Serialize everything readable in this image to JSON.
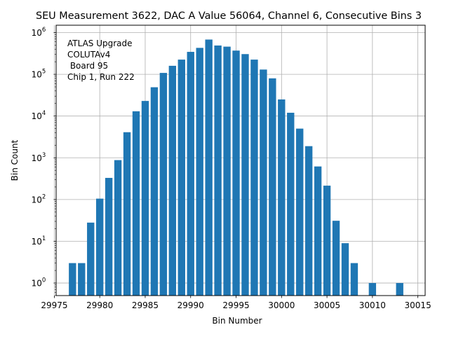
{
  "chart_data": {
    "type": "bar",
    "title": "SEU Measurement 3622, DAC A Value 56064, Channel 6, Consecutive Bins 3",
    "xlabel": "Bin Number",
    "ylabel": "Bin Count",
    "yscale": "log",
    "xlim": [
      29975.2,
      30015.8
    ],
    "ylim": [
      0.5,
      1500000
    ],
    "grid": true,
    "bar_color": "#1f77b4",
    "bar_width": 0.8,
    "x_ticks": [
      29975,
      29980,
      29985,
      29990,
      29995,
      30000,
      30005,
      30010,
      30015
    ],
    "x_tick_labels": [
      "29975",
      "29980",
      "29985",
      "29990",
      "29995",
      "30000",
      "30005",
      "30010",
      "30015"
    ],
    "y_ticks": [
      1,
      10,
      100,
      1000,
      10000,
      100000,
      1000000
    ],
    "y_tick_base": "10",
    "y_tick_exponents": [
      "0",
      "1",
      "2",
      "3",
      "4",
      "5",
      "6"
    ],
    "annotation": [
      "ATLAS Upgrade",
      "COLUTAv4",
      " Board 95",
      "Chip 1, Run 222"
    ],
    "x": [
      29977,
      29978,
      29979,
      29980,
      29981,
      29982,
      29983,
      29984,
      29985,
      29986,
      29987,
      29988,
      29989,
      29990,
      29991,
      29992,
      29993,
      29994,
      29995,
      29996,
      29997,
      29998,
      29999,
      30000,
      30001,
      30002,
      30003,
      30004,
      30005,
      30006,
      30007,
      30008,
      30010,
      30013
    ],
    "values": [
      3,
      3,
      28,
      105,
      330,
      880,
      4100,
      13000,
      23000,
      49000,
      108000,
      160000,
      225000,
      345000,
      430000,
      680000,
      490000,
      460000,
      370000,
      305000,
      225000,
      130000,
      80000,
      25000,
      12000,
      5000,
      1900,
      620,
      215,
      31,
      9,
      3,
      1,
      1
    ]
  }
}
